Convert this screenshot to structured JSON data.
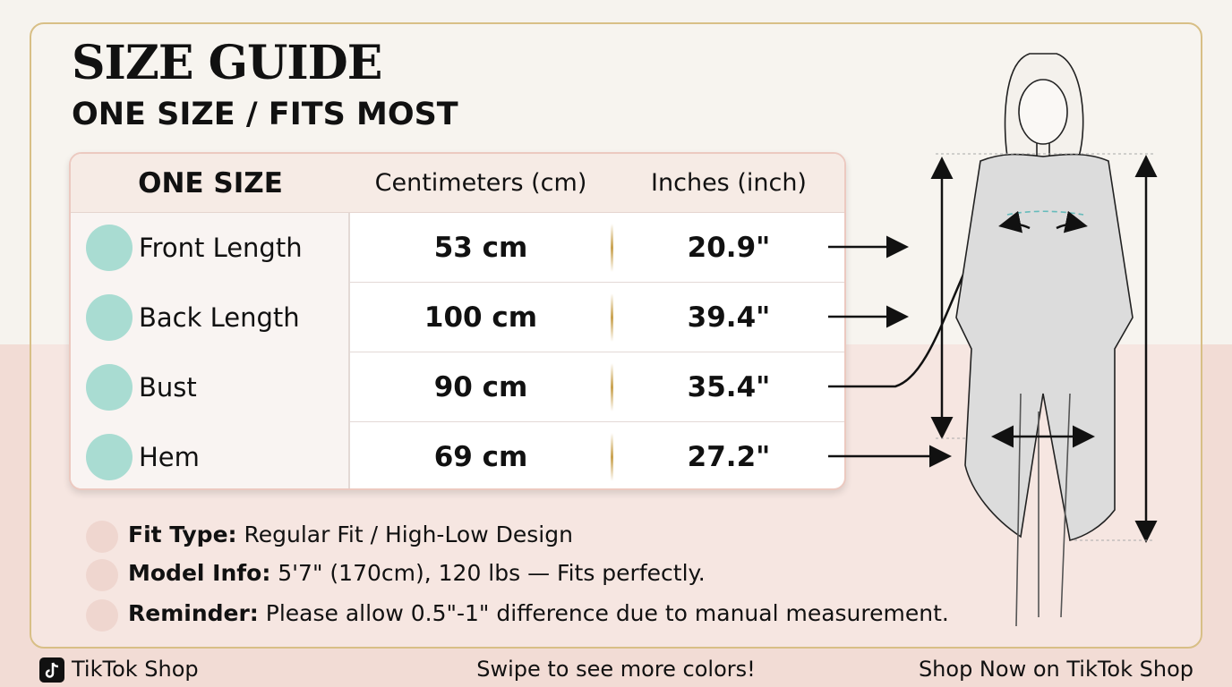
{
  "header": {
    "title": "SIZE GUIDE",
    "subtitle": "ONE SIZE / FITS MOST"
  },
  "table": {
    "headers": [
      "ONE SIZE",
      "Centimeters (cm)",
      "Inches (inch)"
    ],
    "rows": [
      [
        "Front Length",
        "53 cm",
        "20.9\""
      ],
      [
        "Back Length",
        "100 cm",
        "39.4\""
      ],
      [
        "Bust",
        "90 cm",
        "35.4\""
      ],
      [
        "Hem",
        "69 cm",
        "27.2\""
      ]
    ]
  },
  "notes": [
    {
      "label": "Fit Type:",
      "text": "Regular Fit / High-Low Design"
    },
    {
      "label": "Model Info:",
      "text": "5'7\" (170cm), 120 lbs — Fits perfectly."
    },
    {
      "label": "Reminder:",
      "text": "Please allow 0.5\"-1\" difference due to manual measurement."
    }
  ],
  "footer": {
    "left": "TikTok Shop",
    "center": "Swipe to see more colors!",
    "right": "Shop Now on TikTok Shop"
  }
}
